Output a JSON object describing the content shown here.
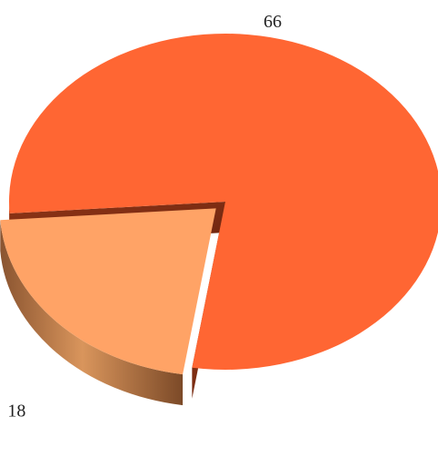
{
  "chart_data": {
    "type": "pie",
    "style": "3d-exploded",
    "slices": [
      {
        "value": 66,
        "label": "66",
        "color": "#FF6633",
        "exploded": false
      },
      {
        "value": 18,
        "label": "18",
        "color": "#FFA366",
        "exploded": true
      }
    ],
    "title": "",
    "legend": "none"
  }
}
